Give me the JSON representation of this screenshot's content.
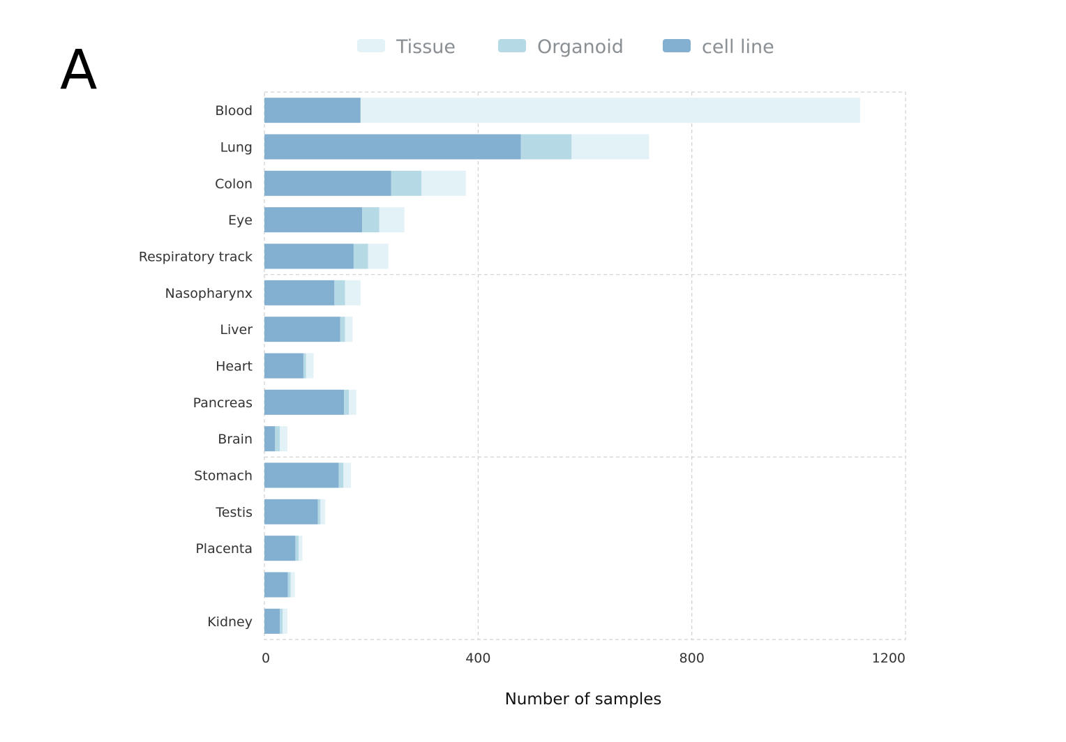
{
  "panel_label": "A",
  "chart_data": {
    "type": "bar",
    "orientation": "horizontal",
    "stacked": true,
    "xlabel": "Number of samples",
    "ylabel": "",
    "xlim": [
      0,
      1200
    ],
    "x_ticks": [
      0,
      400,
      800,
      1200
    ],
    "grid": true,
    "legend_position": "top",
    "categories": [
      "Blood",
      "Lung",
      "Colon",
      "Eye",
      "Respiratory track",
      "Nasopharynx",
      "Liver",
      "Heart",
      "Pancreas",
      "Brain",
      "Stomach",
      "Testis",
      "Placenta",
      "",
      "Kidney"
    ],
    "series": [
      {
        "name": "cell line",
        "color": "#83afd0",
        "values": [
          180,
          480,
          237,
          183,
          167,
          131,
          142,
          73,
          149,
          20,
          139,
          100,
          58,
          44,
          29
        ]
      },
      {
        "name": "Organoid",
        "color": "#b6d9e6",
        "values": [
          0,
          95,
          57,
          32,
          27,
          20,
          9,
          5,
          9,
          9,
          9,
          5,
          6,
          5,
          5
        ]
      },
      {
        "name": "Tissue",
        "color": "#e3f2f7",
        "values": [
          935,
          145,
          83,
          47,
          38,
          29,
          14,
          14,
          14,
          14,
          14,
          9,
          7,
          8,
          9
        ]
      }
    ],
    "legend_order": [
      "Tissue",
      "Organoid",
      "cell line"
    ]
  }
}
